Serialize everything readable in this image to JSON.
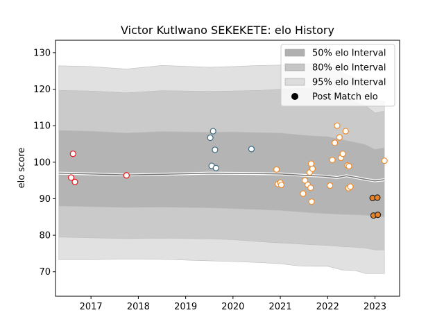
{
  "chart_data": {
    "type": "scatter",
    "title": "Victor Kutlwano SEKEKETE: elo History",
    "xlabel": "",
    "ylabel": "elo score",
    "xlim": [
      2016.25,
      2023.52
    ],
    "ylim": [
      63.3,
      133.4
    ],
    "x_ticks": [
      "2017",
      "2018",
      "2019",
      "2020",
      "2021",
      "2022",
      "2023"
    ],
    "y_ticks": [
      "70",
      "80",
      "90",
      "100",
      "110",
      "120",
      "130"
    ],
    "legend": {
      "position": "top-right",
      "entries": [
        {
          "label": "50% elo Interval",
          "kind": "band",
          "color": "#b0b0b0"
        },
        {
          "label": "80% elo Interval",
          "kind": "band",
          "color": "#c6c6c6"
        },
        {
          "label": "95% elo Interval",
          "kind": "band",
          "color": "#dcdcdc"
        },
        {
          "label": "Post Match elo",
          "kind": "marker",
          "color": "#000000"
        }
      ]
    },
    "mean_line": {
      "x": [
        2016.32,
        2017.0,
        2017.75,
        2018.5,
        2019.5,
        2020.4,
        2021.0,
        2021.5,
        2021.9,
        2022.2,
        2022.4,
        2022.6,
        2022.8,
        2023.0,
        2023.2
      ],
      "y": [
        97.0,
        96.8,
        96.5,
        96.7,
        97.0,
        96.9,
        96.8,
        96.4,
        96.2,
        95.8,
        96.3,
        95.8,
        95.3,
        94.9,
        95.2
      ]
    },
    "intervals": {
      "i95": {
        "x": [
          2016.32,
          2017.0,
          2017.75,
          2018.5,
          2019.5,
          2020.0,
          2020.6,
          2021.0,
          2021.4,
          2021.7,
          2022.0,
          2022.3,
          2022.6,
          2022.8,
          2023.0,
          2023.2
        ],
        "upper": [
          126.4,
          126.2,
          125.5,
          126.5,
          126.0,
          126.2,
          126.5,
          126.6,
          126.8,
          127.0,
          126.8,
          124.5,
          123.0,
          122.0,
          117.0,
          116.6
        ],
        "lower": [
          73.3,
          73.3,
          73.5,
          73.4,
          73.0,
          72.8,
          72.5,
          72.2,
          71.6,
          71.5,
          71.5,
          70.5,
          70.3,
          69.5,
          69.5,
          69.5
        ]
      },
      "i80": {
        "x": [
          2016.32,
          2017.0,
          2017.75,
          2018.5,
          2019.5,
          2020.0,
          2020.6,
          2021.0,
          2021.4,
          2021.7,
          2022.0,
          2022.3,
          2022.6,
          2022.8,
          2023.0,
          2023.2
        ],
        "upper": [
          119.7,
          119.5,
          119.0,
          119.6,
          119.4,
          119.5,
          119.7,
          120.0,
          120.2,
          120.1,
          120.0,
          118.2,
          116.4,
          115.5,
          113.5,
          114.0
        ],
        "lower": [
          79.5,
          79.3,
          79.1,
          79.2,
          79.0,
          78.8,
          78.2,
          77.9,
          77.6,
          77.4,
          77.2,
          76.9,
          76.7,
          76.5,
          76.0,
          76.0
        ]
      },
      "i50": {
        "x": [
          2016.32,
          2017.0,
          2017.75,
          2018.5,
          2019.5,
          2020.0,
          2020.6,
          2021.0,
          2021.4,
          2021.7,
          2022.0,
          2022.3,
          2022.6,
          2022.8,
          2023.0,
          2023.2
        ],
        "upper": [
          108.7,
          108.5,
          108.0,
          108.4,
          108.2,
          108.3,
          108.1,
          108.0,
          107.5,
          107.2,
          107.0,
          106.2,
          105.4,
          104.8,
          103.5,
          104.0
        ],
        "lower": [
          88.0,
          87.8,
          87.6,
          87.7,
          87.5,
          87.3,
          87.0,
          86.8,
          86.4,
          86.1,
          85.9,
          85.7,
          85.6,
          85.5,
          85.2,
          85.0
        ]
      }
    },
    "series": [
      {
        "color": "#e8141b",
        "fill": "#ffffff",
        "points": [
          [
            2016.62,
            102.3
          ],
          [
            2016.58,
            95.8
          ],
          [
            2016.66,
            94.6
          ],
          [
            2017.75,
            96.4
          ]
        ]
      },
      {
        "color": "#3b6a82",
        "fill": "#ffffff",
        "points": [
          [
            2019.58,
            108.5
          ],
          [
            2019.52,
            106.7
          ],
          [
            2019.62,
            103.4
          ],
          [
            2020.39,
            103.6
          ],
          [
            2019.55,
            99.0
          ],
          [
            2019.64,
            98.4
          ]
        ]
      },
      {
        "color": "#f08a2a",
        "fill": "#ffffff",
        "points": [
          [
            2020.92,
            98.0
          ],
          [
            2020.95,
            94.0
          ],
          [
            2021.0,
            94.4
          ],
          [
            2021.02,
            93.8
          ],
          [
            2021.48,
            91.4
          ],
          [
            2021.52,
            95.0
          ],
          [
            2021.58,
            93.8
          ],
          [
            2021.62,
            97.2
          ],
          [
            2021.65,
            99.6
          ],
          [
            2021.68,
            98.2
          ],
          [
            2021.64,
            93.0
          ],
          [
            2021.66,
            89.2
          ],
          [
            2022.05,
            93.6
          ],
          [
            2022.1,
            100.6
          ],
          [
            2022.15,
            105.3
          ],
          [
            2022.2,
            110.0
          ],
          [
            2022.25,
            106.8
          ],
          [
            2022.28,
            101.2
          ],
          [
            2022.32,
            102.3
          ],
          [
            2022.38,
            108.5
          ],
          [
            2022.42,
            99.1
          ],
          [
            2022.45,
            98.9
          ],
          [
            2022.44,
            92.9
          ],
          [
            2022.48,
            93.3
          ],
          [
            2023.2,
            100.4
          ]
        ]
      },
      {
        "color": "#222222",
        "fill": "#e8832a",
        "points": [
          [
            2022.95,
            90.2
          ],
          [
            2023.05,
            90.3
          ],
          [
            2022.97,
            85.4
          ],
          [
            2023.06,
            85.6
          ]
        ]
      }
    ]
  }
}
